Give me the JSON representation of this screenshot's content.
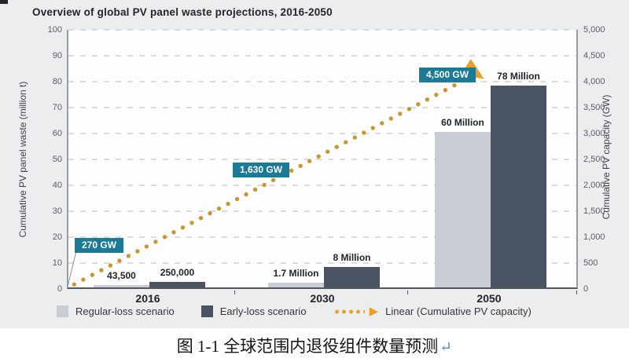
{
  "title": "Overview of global PV panel waste projections, 2016-2050",
  "chart_data": {
    "type": "bar",
    "title": "Overview of global PV panel waste projections, 2016-2050",
    "categories": [
      "2016",
      "2030",
      "2050"
    ],
    "series": [
      {
        "name": "Regular-loss scenario",
        "type": "bar",
        "axis": "left",
        "unit": "million t",
        "values": [
          0.0435,
          1.7,
          60
        ],
        "value_labels": [
          "43,500",
          "1.7 Million",
          "60 Million"
        ],
        "color": "#c7cdd3"
      },
      {
        "name": "Early-loss scenario",
        "type": "bar",
        "axis": "left",
        "unit": "million t",
        "values": [
          0.25,
          8,
          78
        ],
        "value_labels": [
          "250,000",
          "8 Million",
          "78 Million"
        ],
        "color": "#4a5362"
      },
      {
        "name": "Linear (Cumulative PV capacity)",
        "type": "line",
        "axis": "right",
        "unit": "GW",
        "values": [
          270,
          1630,
          4500
        ],
        "value_labels": [
          "270 GW",
          "1,630 GW",
          "4,500 GW"
        ],
        "color": "#c9962e"
      }
    ],
    "left_axis": {
      "label": "Cumulative PV panel waste (million t)",
      "range": [
        0,
        100
      ],
      "tick_step": 10,
      "ticks": [
        "0",
        "10",
        "20",
        "30",
        "40",
        "50",
        "60",
        "70",
        "80",
        "90",
        "100"
      ]
    },
    "right_axis": {
      "label": "Cumulative PV capacity (GW)",
      "range": [
        0,
        5000
      ],
      "tick_step": 500,
      "ticks": [
        "0",
        "500",
        "1,000",
        "1,500",
        "2,000",
        "2,500",
        "3,000",
        "3,500",
        "4,000",
        "4,500",
        "5,000"
      ]
    },
    "grid": "horizontal-dashed",
    "legend_position": "bottom"
  },
  "legend": {
    "items": [
      {
        "label": "Regular-loss scenario",
        "type": "bar",
        "swatch": "#c7cdd3"
      },
      {
        "label": "Early-loss scenario",
        "type": "bar",
        "swatch": "#4a5362"
      },
      {
        "label": "Linear (Cumulative PV capacity)",
        "type": "line",
        "color": "#ef9d26"
      }
    ]
  },
  "callouts": [
    {
      "text": "270 GW"
    },
    {
      "text": "1,630 GW"
    },
    {
      "text": "4,500 GW"
    }
  ],
  "caption": {
    "text": "图 1-1 全球范围内退役组件数量预测",
    "return_mark": "↵"
  },
  "colors": {
    "callout_teal": "#1b7b97",
    "line_dot_orange": "#c9962e",
    "arrow_orange": "#ef9d26",
    "bar_light": "#c7cdd3",
    "bar_dark": "#4a5362",
    "figure_bg": "#ecedee"
  }
}
